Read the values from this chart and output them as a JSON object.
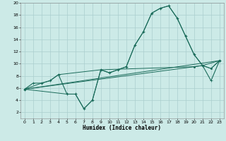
{
  "xlabel": "Humidex (Indice chaleur)",
  "background_color": "#cceae7",
  "grid_color": "#aacece",
  "line_color": "#1a6b5a",
  "xlim": [
    -0.5,
    23.5
  ],
  "ylim": [
    1,
    20
  ],
  "xticks": [
    0,
    1,
    2,
    3,
    4,
    5,
    6,
    7,
    8,
    9,
    10,
    11,
    12,
    13,
    14,
    15,
    16,
    17,
    18,
    19,
    20,
    21,
    22,
    23
  ],
  "yticks": [
    2,
    4,
    6,
    8,
    10,
    12,
    14,
    16,
    18,
    20
  ],
  "series": [
    {
      "x": [
        0,
        1,
        2,
        3,
        4,
        5,
        6,
        7,
        8,
        9,
        10,
        11,
        12,
        13,
        14,
        15,
        16,
        17,
        18,
        19,
        20,
        21,
        22,
        23
      ],
      "y": [
        5.8,
        6.8,
        6.8,
        7.2,
        8.2,
        5.0,
        5.0,
        2.6,
        4.0,
        9.0,
        8.5,
        9.0,
        9.5,
        13.0,
        15.2,
        18.3,
        19.1,
        19.5,
        17.5,
        14.5,
        11.5,
        9.7,
        7.2,
        10.5
      ],
      "marker": "+",
      "markersize": 3.5,
      "linewidth": 0.8
    },
    {
      "x": [
        0,
        2,
        3,
        4,
        9,
        10,
        11,
        12,
        13,
        14,
        15,
        16,
        17,
        18,
        19,
        20,
        21,
        23
      ],
      "y": [
        5.8,
        6.8,
        7.2,
        8.2,
        9.0,
        8.5,
        9.0,
        9.5,
        13.0,
        15.2,
        18.3,
        19.1,
        19.5,
        17.5,
        14.5,
        11.5,
        9.7,
        10.5
      ],
      "marker": ".",
      "markersize": 2.5,
      "linewidth": 0.7
    },
    {
      "x": [
        0,
        23
      ],
      "y": [
        5.8,
        10.5
      ],
      "marker": null,
      "markersize": 0,
      "linewidth": 0.7
    },
    {
      "x": [
        0,
        20,
        21,
        22,
        23
      ],
      "y": [
        5.8,
        9.5,
        9.7,
        9.2,
        10.5
      ],
      "marker": ".",
      "markersize": 2.5,
      "linewidth": 0.7
    },
    {
      "x": [
        0,
        5,
        6,
        7,
        8,
        9,
        20,
        21,
        22,
        23
      ],
      "y": [
        5.8,
        5.0,
        5.0,
        2.6,
        4.0,
        9.0,
        9.5,
        9.7,
        9.2,
        10.5
      ],
      "marker": ".",
      "markersize": 2.5,
      "linewidth": 0.7
    }
  ]
}
